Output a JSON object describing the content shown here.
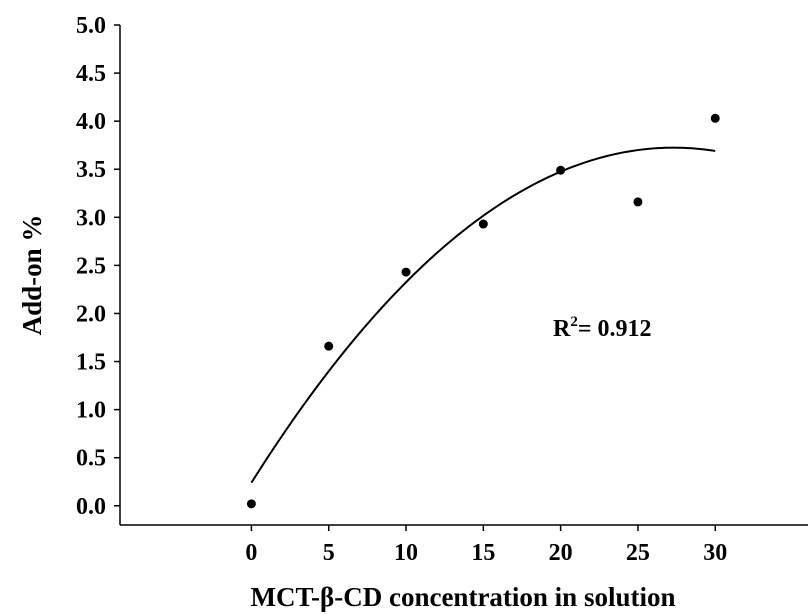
{
  "chart_data": {
    "type": "scatter",
    "title": "",
    "xlabel": "MCT-β-CD concentration in solution",
    "ylabel": "Add-on %",
    "xlim": [
      -8.5,
      36
    ],
    "ylim": [
      -0.2,
      5.0
    ],
    "x_ticks": [
      "0",
      "5",
      "10",
      "15",
      "20",
      "25",
      "30"
    ],
    "y_ticks": [
      "0.0",
      "0.5",
      "1.0",
      "1.5",
      "2.0",
      "2.5",
      "3.0",
      "3.5",
      "4.0",
      "4.5",
      "5.0"
    ],
    "x_tick_values": [
      0,
      5,
      10,
      15,
      20,
      25,
      30
    ],
    "y_tick_values": [
      0.0,
      0.5,
      1.0,
      1.5,
      2.0,
      2.5,
      3.0,
      3.5,
      4.0,
      4.5,
      5.0
    ],
    "points": [
      {
        "x": 0,
        "y": 0.02
      },
      {
        "x": 5,
        "y": 1.66
      },
      {
        "x": 10,
        "y": 2.43
      },
      {
        "x": 15,
        "y": 2.93
      },
      {
        "x": 20,
        "y": 3.49
      },
      {
        "x": 25,
        "y": 3.16
      },
      {
        "x": 30,
        "y": 4.03
      }
    ],
    "fit": {
      "type": "polynomial-2",
      "coefficients": [
        0.24,
        0.2552,
        -0.004673
      ]
    },
    "annotation": {
      "base": "R",
      "superscript": "2",
      "text": "= 0.912"
    },
    "grid": false,
    "legend": "none",
    "marker_color": "#000000",
    "line_color": "#000000"
  }
}
